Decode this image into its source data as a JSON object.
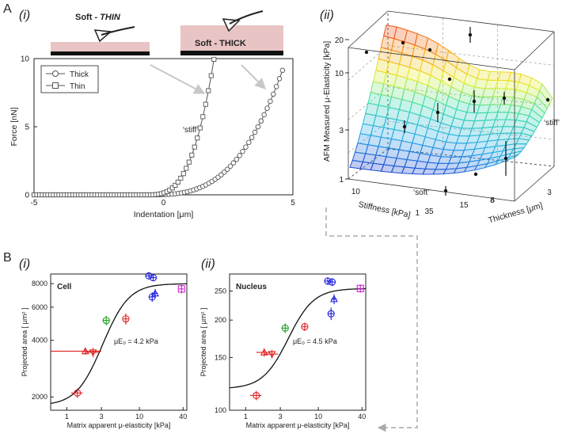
{
  "figure": {
    "panel_A": "A",
    "panel_B": "B",
    "sub_i": "(i)",
    "sub_ii": "(ii)"
  },
  "schematic": {
    "thin_label": "Soft - ",
    "thin_label_em": "THIN",
    "thick_label": "Soft - THICK",
    "gel_color": "#e8c4c4",
    "substrate_color": "#111111"
  },
  "chart_data": [
    {
      "id": "A-i",
      "type": "line",
      "xlabel": "Indentation [μm]",
      "ylabel": "Force [nN]",
      "xlim": [
        -5,
        5
      ],
      "ylim": [
        0,
        10
      ],
      "xticks": [
        -5,
        0,
        5
      ],
      "yticks": [
        0,
        5,
        10
      ],
      "annotation": "‘stiff’",
      "series": [
        {
          "name": "Thick",
          "marker": "circle",
          "x0": -0.6,
          "xmax": 4.6,
          "k": 10
        },
        {
          "name": "Thin",
          "marker": "square",
          "x0": -0.6,
          "xmax": 1.95,
          "k": 60
        }
      ]
    },
    {
      "id": "A-ii",
      "type": "surface",
      "zlabel": "AFM Measured μ-Elasticity [kPa]",
      "xlabel": "Stiffness [kPa]",
      "ylabel": "Thickness [μm]",
      "zticks": [
        "1",
        "3",
        "10",
        "20"
      ],
      "stiffness_ticks": [
        "10",
        "1"
      ],
      "thickness_ticks": [
        "35",
        "15",
        "8",
        "3"
      ],
      "annotations": [
        "‘stiff’",
        "‘soft’"
      ]
    },
    {
      "id": "B-i",
      "type": "scatter",
      "title": "Cell",
      "xlabel": "Matrix apparent μ-elasticity [kPa]",
      "ylabel": "Projected area [ μm² ]",
      "xscale": "log",
      "yscale": "log",
      "xlim": [
        0.6,
        45
      ],
      "ylim": [
        1700,
        9000
      ],
      "xticks": [
        "1",
        "3",
        "10",
        "40"
      ],
      "yticks": [
        "2000",
        "4000",
        "6000",
        "8000"
      ],
      "fit_label": "μE₀ = 4.2 kPa",
      "fit": {
        "ymin": 1800,
        "ymax": 8000,
        "E0": 4.2,
        "n": 2.5
      },
      "points": [
        {
          "x": 1.4,
          "y": 2100,
          "c": "#e02020",
          "m": "o",
          "xe": 0.25,
          "ye": 120
        },
        {
          "x": 1.8,
          "y": 3500,
          "c": "#e02020",
          "m": "^",
          "xe": 1.2,
          "ye": 150
        },
        {
          "x": 2.3,
          "y": 3450,
          "c": "#e02020",
          "m": "v",
          "xe": 0.5,
          "ye": 200
        },
        {
          "x": 3.5,
          "y": 5100,
          "c": "#20a020",
          "m": "o",
          "xe": 0.4,
          "ye": 300
        },
        {
          "x": 6.5,
          "y": 5200,
          "c": "#e02020",
          "m": "o",
          "xe": 0.5,
          "ye": 350
        },
        {
          "x": 13.5,
          "y": 8800,
          "c": "#2020e0",
          "m": "o",
          "xe": 1.5,
          "ye": 300
        },
        {
          "x": 15.5,
          "y": 8600,
          "c": "#2020e0",
          "m": "o",
          "xe": 1.5,
          "ye": 300
        },
        {
          "x": 15.0,
          "y": 6800,
          "c": "#2020e0",
          "m": "o",
          "xe": 1.5,
          "ye": 400
        },
        {
          "x": 16.5,
          "y": 7100,
          "c": "#2020e0",
          "m": "^",
          "xe": 1.5,
          "ye": 400
        },
        {
          "x": 38.0,
          "y": 7500,
          "c": "#d020d0",
          "m": "s",
          "xe": 3.0,
          "ye": 400
        }
      ]
    },
    {
      "id": "B-ii",
      "type": "scatter",
      "title": "Nucleus",
      "xlabel": "Matrix apparent μ-elasticity [kPa]",
      "ylabel": "Projected area [ μm² ]",
      "xscale": "log",
      "yscale": "log",
      "xlim": [
        0.6,
        45
      ],
      "ylim": [
        100,
        285
      ],
      "xticks": [
        "1",
        "3",
        "10",
        "40"
      ],
      "yticks": [
        "100",
        "150",
        "200",
        "250"
      ],
      "fit_label": "μE₀ = 4.5 kPa",
      "fit": {
        "ymin": 118,
        "ymax": 255,
        "E0": 4.5,
        "n": 2.5
      },
      "points": [
        {
          "x": 1.4,
          "y": 112,
          "c": "#e02020",
          "m": "o",
          "xe": 0.25,
          "ye": 4
        },
        {
          "x": 1.8,
          "y": 156,
          "c": "#e02020",
          "m": "^",
          "xe": 0.4,
          "ye": 5
        },
        {
          "x": 2.3,
          "y": 154,
          "c": "#e02020",
          "m": "v",
          "xe": 0.5,
          "ye": 5
        },
        {
          "x": 3.5,
          "y": 188,
          "c": "#20a020",
          "m": "o",
          "xe": 0.4,
          "ye": 7
        },
        {
          "x": 6.5,
          "y": 190,
          "c": "#e02020",
          "m": "o",
          "xe": 0.5,
          "ye": 6
        },
        {
          "x": 13.5,
          "y": 270,
          "c": "#2020e0",
          "m": "o",
          "xe": 1.5,
          "ye": 8
        },
        {
          "x": 15.5,
          "y": 268,
          "c": "#2020e0",
          "m": "o",
          "xe": 1.5,
          "ye": 8
        },
        {
          "x": 15.0,
          "y": 210,
          "c": "#2020e0",
          "m": "o",
          "xe": 1.5,
          "ye": 10
        },
        {
          "x": 16.5,
          "y": 235,
          "c": "#2020e0",
          "m": "^",
          "xe": 1.5,
          "ye": 9
        },
        {
          "x": 38.0,
          "y": 255,
          "c": "#d020d0",
          "m": "s",
          "xe": 3.0,
          "ye": 8
        }
      ]
    }
  ]
}
